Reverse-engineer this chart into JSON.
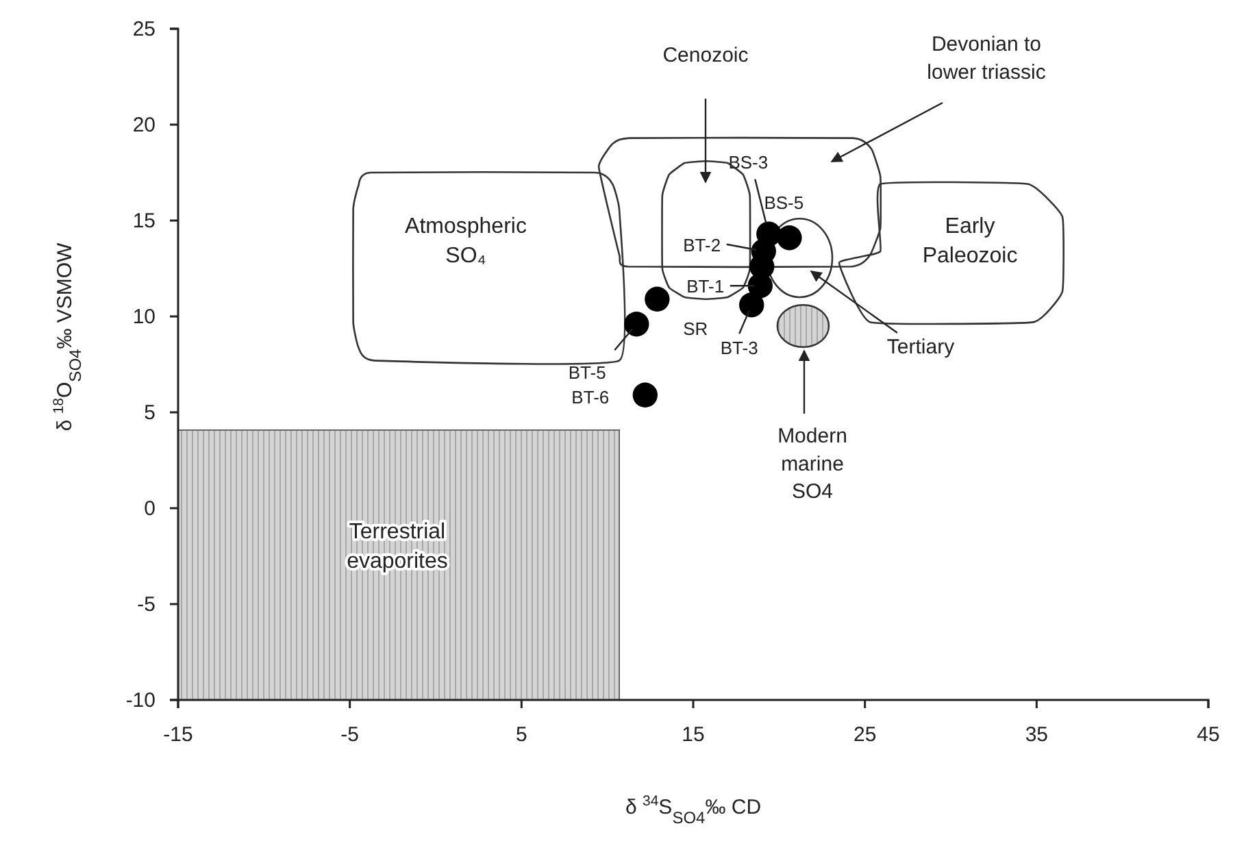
{
  "chart_data": {
    "type": "scatter",
    "xlabel": "δ $^{34}$S$_{SO4}$‰ CD",
    "ylabel": "δ $^{18}$O$_{SO4}$‰ VSMOW",
    "xlim": [
      -15,
      45
    ],
    "xticks": [
      -15,
      -5,
      5,
      15,
      25,
      35,
      45
    ],
    "ylim": [
      -10,
      25
    ],
    "yticks": [
      -10,
      -5,
      0,
      5,
      10,
      15,
      20,
      25
    ],
    "grid": false,
    "series": [
      {
        "color": "#000000",
        "marker": "circle",
        "x": [
          12.2,
          11.7,
          12.9,
          18.4,
          18.9,
          19.0,
          19.1,
          19.4,
          20.6
        ],
        "values": [
          5.9,
          9.6,
          10.9,
          10.6,
          11.6,
          12.6,
          13.4,
          14.3,
          14.1
        ]
      }
    ],
    "annotations": [
      "Cenozoic",
      "Devonian to\nlower triassic",
      "Atmospheric\nSO₄",
      "Early\nPaleozoic",
      "Tertiary",
      "Modern\nmarine\nSO4",
      "Terrestrial\nevaporites",
      {
        "text": "BT-6",
        "x": 12.2,
        "y": 5.9
      },
      {
        "text": "BT-5",
        "x": 11.7,
        "y": 9.6
      },
      {
        "text": "SR",
        "x": 12.9,
        "y": 10.9
      },
      {
        "text": "BT-3",
        "x": 18.4,
        "y": 10.6
      },
      {
        "text": "BT-1",
        "x": 18.9,
        "y": 11.6
      },
      {
        "text": "BT-2",
        "x": 19.1,
        "y": 13.4
      },
      {
        "text": "BS-3",
        "x": 19.4,
        "y": 14.3
      },
      {
        "text": "BS-5",
        "x": 20.6,
        "y": 14.1
      }
    ]
  }
}
